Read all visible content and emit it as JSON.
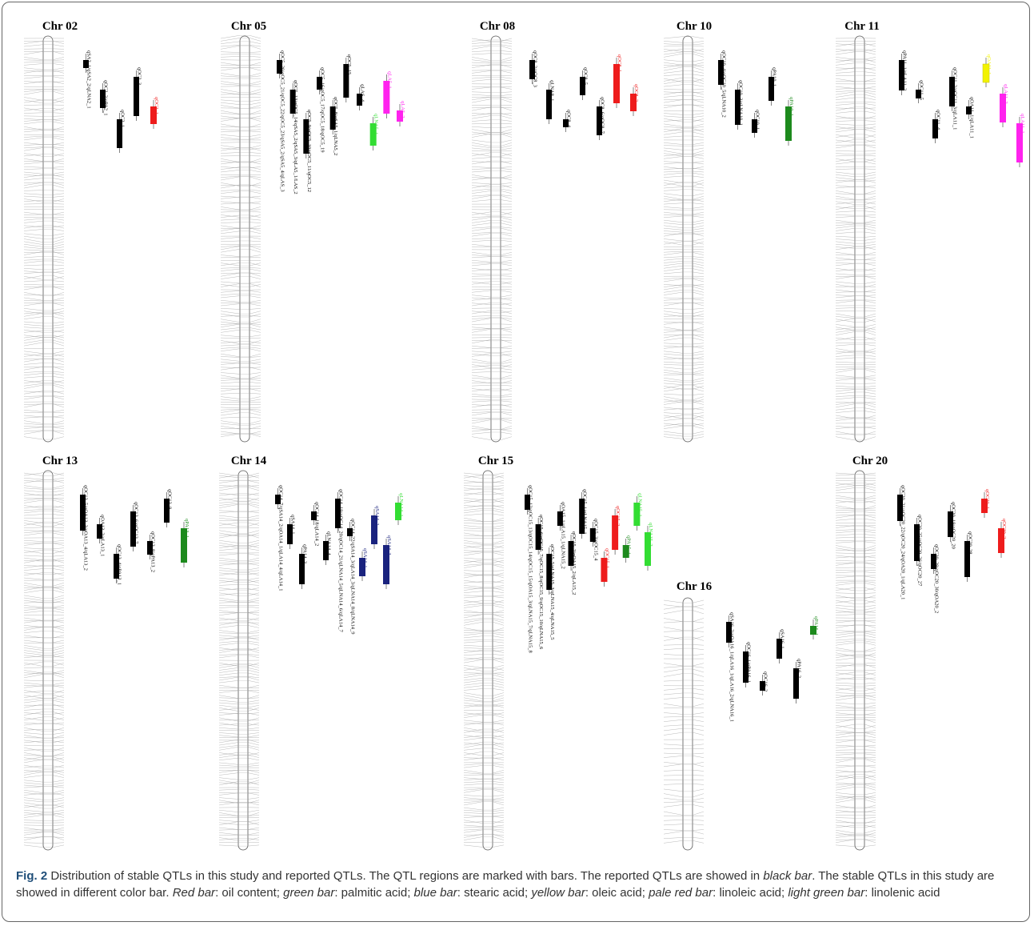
{
  "colors": {
    "reported": "#000000",
    "oil_content": "#ee1c1c",
    "palmitic_acid": "#1d8a1d",
    "stearic_acid": "#1a237e",
    "oleic_acid": "#f2f200",
    "linoleic_acid": "#ff22ee",
    "linolenic_acid": "#33dd33"
  },
  "caption": {
    "fig_label": "Fig. 2",
    "part1": " Distribution of stable QTLs in this study and reported QTLs. The QTL regions are marked with bars. The reported QTLs are showed in ",
    "italic1": "black bar",
    "part2": ". The stable QTLs in this study are showed in different color bar. ",
    "italic2": "Red bar",
    "part3": ": oil content; ",
    "italic3": "green bar",
    "part4": ": palmitic acid; ",
    "italic4": "blue bar",
    "part5": ": stearic acid; ",
    "italic5": "yellow bar",
    "part6": ": oleic acid; ",
    "italic6": "pale red bar",
    "part7": ": linoleic acid; ",
    "italic7": "light green bar",
    "part8": ": linolenic acid"
  },
  "chromosomes": [
    {
      "name": "Chr 02",
      "qtls": [
        {
          "label": "qSA2_1/qSA2_2/qLNA2_1",
          "type": "reported"
        },
        {
          "label": "qOC2_2/qPA2_1",
          "type": "reported"
        },
        {
          "label": "qOC2_1",
          "type": "reported"
        },
        {
          "label": "qOC2_3",
          "type": "reported"
        },
        {
          "label": "qOC2_1",
          "type": "oil_content"
        }
      ]
    },
    {
      "name": "Chr 05",
      "qtls": [
        {
          "label": "qOC5_20/qOC5_21/qOC5_22/qOC5_23/qSA5_2/qSA5_4/qLAS_3",
          "type": "reported"
        },
        {
          "label": "qOC5_13/qOC5_14/qSA5_2/qSA5_3/qLA5_1/LAS_2",
          "type": "reported"
        },
        {
          "label": "qOC5_9/qOC5_10/qOC5_11/qOC5_12",
          "type": "reported"
        },
        {
          "label": "qOC5_16/qOC5_17/qOC5_18/qOC5_19",
          "type": "reported"
        },
        {
          "label": "qOC5_8/qSA5_1/qLNA5_2",
          "type": "reported"
        },
        {
          "label": "qOC5_15",
          "type": "reported"
        },
        {
          "label": "qLAS_4",
          "type": "reported"
        },
        {
          "label": "qLNA5_1",
          "type": "linolenic_acid"
        },
        {
          "label": "qLA5_1",
          "type": "linoleic_acid"
        },
        {
          "label": "qLA5_2",
          "type": "linoleic_acid"
        }
      ]
    },
    {
      "name": "Chr 08",
      "qtls": [
        {
          "label": "qOC8_2/qOC8_3",
          "type": "reported"
        },
        {
          "label": "qLNA8_1",
          "type": "reported"
        },
        {
          "label": "qOC8_4",
          "type": "reported"
        },
        {
          "label": "qOC8_5",
          "type": "reported"
        },
        {
          "label": "qOC8_6/qOC8_7",
          "type": "reported"
        },
        {
          "label": "qOC8_1",
          "type": "oil_content"
        },
        {
          "label": "qOC8_2",
          "type": "oil_content"
        }
      ]
    },
    {
      "name": "Chr 10",
      "qtls": [
        {
          "label": "qOC10_4/qOC10_5/qLNA10_2",
          "type": "reported"
        },
        {
          "label": "qOC10_3/qLNA10_1",
          "type": "reported"
        },
        {
          "label": "qOC10_1",
          "type": "reported"
        },
        {
          "label": "qPA10_1",
          "type": "reported"
        },
        {
          "label": "qPA10_1",
          "type": "palmitic_acid"
        }
      ]
    },
    {
      "name": "Chr 11",
      "qtls": [
        {
          "label": "qPA11_1/qLA11_2",
          "type": "reported"
        },
        {
          "label": "qOC11_5",
          "type": "reported"
        },
        {
          "label": "qOC11_4",
          "type": "reported"
        },
        {
          "label": "qOC11_2/qOC11_3/qLA11_1",
          "type": "reported"
        },
        {
          "label": "qOA11_1/qLA11_1",
          "type": "reported"
        },
        {
          "label": "qOA11_1",
          "type": "oleic_acid"
        },
        {
          "label": "qLA11_2",
          "type": "linoleic_acid"
        },
        {
          "label": "qLA11_1",
          "type": "linoleic_acid"
        }
      ]
    },
    {
      "name": "Chr 13",
      "qtls": [
        {
          "label": "qOC13_5/qOA13_3/qOA13_4/qLA13_2",
          "type": "reported"
        },
        {
          "label": "qOA13_2/qLA13_1",
          "type": "reported"
        },
        {
          "label": "qOC13_4/qPA13_1",
          "type": "reported"
        },
        {
          "label": "qOC13_6/qOC13_7",
          "type": "reported"
        },
        {
          "label": "qOC13_8/qPA13_2",
          "type": "reported"
        },
        {
          "label": "qOC13_9",
          "type": "reported"
        },
        {
          "label": "qPA13_1",
          "type": "palmitic_acid"
        }
      ]
    },
    {
      "name": "Chr 14",
      "qtls": [
        {
          "label": "qOC14_7/qSA14_2/qOA14_1/qLA14_4/qLA14_1",
          "type": "reported"
        },
        {
          "label": "qSA14_1",
          "type": "reported"
        },
        {
          "label": "qPA14_3",
          "type": "reported"
        },
        {
          "label": "qOC14_18/qLA14_2",
          "type": "reported"
        },
        {
          "label": "qLNA14_4",
          "type": "reported"
        },
        {
          "label": "qOC14_19/qOC14_20/qOC14_21/qLNA14_5/qLNA14_6/qLA14_7",
          "type": "reported"
        },
        {
          "label": "qOC14_22/qSA14_3/qLA14_3/qLNA14_8/qLNA14_9",
          "type": "reported"
        },
        {
          "label": "qSA14_1",
          "type": "stearic_acid"
        },
        {
          "label": "qSA14_2",
          "type": "stearic_acid"
        },
        {
          "label": "qSA14_3",
          "type": "stearic_acid"
        },
        {
          "label": "qLNA14_1",
          "type": "linolenic_acid"
        }
      ]
    },
    {
      "name": "Chr 15",
      "qtls": [
        {
          "label": "qOC15_12/qOC15_13/qOC15_14/qOC15_15/qOA15_3/qLNA15_7/qLNA15_8",
          "type": "reported"
        },
        {
          "label": "qOC15_6/qOC15_7/qOC15_8/qOC15_9/qOC15_10/qLNA15_6",
          "type": "reported"
        },
        {
          "label": "qOC15_5/qLNA15_3/qLNA15_4/qLNA15_5",
          "type": "reported"
        },
        {
          "label": "qOA15_1/qLA15_1/qLNA15_2",
          "type": "reported"
        },
        {
          "label": "qOC15_2/qOA15_2/qLA15_2",
          "type": "reported"
        },
        {
          "label": "qOC15_1/qLNA15_1",
          "type": "reported"
        },
        {
          "label": "qOC15_3/qOC15_4",
          "type": "reported"
        },
        {
          "label": "qOC15_1",
          "type": "oil_content"
        },
        {
          "label": "qOC15_2",
          "type": "oil_content"
        },
        {
          "label": "qPA15_1",
          "type": "palmitic_acid"
        },
        {
          "label": "qLNA15_1",
          "type": "linolenic_acid"
        },
        {
          "label": "qLNA15_2",
          "type": "linolenic_acid"
        }
      ]
    },
    {
      "name": "Chr 16",
      "qtls": [
        {
          "label": "qSA16_2/qOA16_1/qLA16_1/qLA16_2/qLNA16_1",
          "type": "reported"
        },
        {
          "label": "qOC16_1/qPA16_1",
          "type": "reported"
        },
        {
          "label": "qOC16_2",
          "type": "reported"
        },
        {
          "label": "qSA16_1",
          "type": "reported"
        },
        {
          "label": "qPA16_2",
          "type": "reported"
        },
        {
          "label": "qPA16_1",
          "type": "palmitic_acid"
        }
      ]
    },
    {
      "name": "Chr 20",
      "qtls": [
        {
          "label": "qOC20_21/qOC20_22/qOC20_24/qOA20_1/qLA20_1",
          "type": "reported"
        },
        {
          "label": "qOC20_25/qOC20_26/qOC20_27",
          "type": "reported"
        },
        {
          "label": "qOC20_29/qOC20_30/qOA20_2",
          "type": "reported"
        },
        {
          "label": "qOC20_19/qOC20_20",
          "type": "reported"
        },
        {
          "label": "qOC20_28",
          "type": "reported"
        },
        {
          "label": "qOC20_1",
          "type": "oil_content"
        },
        {
          "label": "qOC20_2",
          "type": "oil_content"
        }
      ]
    }
  ]
}
